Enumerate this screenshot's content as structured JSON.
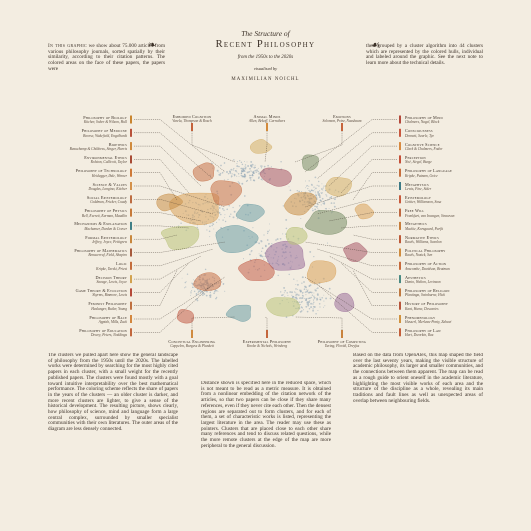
{
  "header": {
    "title_small": "The Structure of",
    "title_main": "Recent Philosophy",
    "subtitle": "from the 1950s to the 2020s",
    "byline": "visualised by",
    "author": "MAXIMILIAN NOICHL",
    "fleuron_left": "❧",
    "fleuron_right": "☙"
  },
  "columns": {
    "top_left_lead": "In this graphic",
    "top_left_text": "we show about 75.000 articles from various philosophy journals, sorted spatially by their similarity, according to their citation patterns. The colored areas on the face of these papers, the papers were",
    "top_right_text": "then grouped by a cluster algorithm into 44 clusters which are represented by the colored hulls, individual and labeled around the graphic. See the next note to learn more about the technical details.",
    "bottom_left_text": "The clusters we pulled apart here show the general landscape of philosophy from the 1950s until the 2020s. The labelled works were determined by searching for the most highly cited papers in each cluster, with a small weight for the recently published papers. The clusters were found mostly with a goal toward intuitive interpretability over the best mathematical performance. The coloring scheme reflects the share of papers in the years of the clusters — an older cluster is darker, and more recent clusters are lighter, to give a sense of the historical development. The resulting picture, shows clearly, how philosophy of science, mind and language form a large central complex, surrounded by smaller specialist communities with their own literatures. The outer areas of the diagram are less densely connected.",
    "bottom_center_text": "Distance shown is specified here in the reduced space, which is not meant to be read as a metric measure. It is obtained from a nonlinear embedding of the citation network of the articles, so that two papers can be close if they share many references, even if they never cite each other. Then the densest regions are separated out to form clusters, and for each of them, a set of characteristic works is listed, representing the largest literature in the area. The reader may use these as pointers. Clusters that are placed close to each other share many references and tend to discuss related questions, while the more remote clusters at the edge of the map are more peripheral to the general discussion.",
    "bottom_right_text": "Based on the data from OpenAlex, this map shaped the field over the last seventy years, making the visible structure of academic philosophy, its larger and smaller communities, and the connections between them apparent. The map can be read as a rough guide to orient oneself in the academic literature, highlighting the most visible works of each area and the structure of the discipline as a whole, revealing its main traditions and fault lines as well as unexpected areas of overlap between neighbouring fields."
  },
  "clusters_left": [
    {
      "name": "Philosophy of Biology",
      "works": "Kitcher, Sober & Wilson, Hull",
      "color": "#c9852f"
    },
    {
      "name": "Philosophy of Medicine",
      "works": "Boorse, Wakefield, Engelhardt",
      "color": "#b9523a"
    },
    {
      "name": "Bioethics",
      "works": "Beauchamp & Childress, Singer, Harris",
      "color": "#d08a3c"
    },
    {
      "name": "Environmental Ethics",
      "works": "Rolston, Callicott, Taylor",
      "color": "#a84b35"
    },
    {
      "name": "Philosophy of Technology",
      "works": "Heidegger, Ihde, Winner",
      "color": "#cf7a38"
    },
    {
      "name": "Science & Values",
      "works": "Douglas, Longino, Kitcher",
      "color": "#d4914a"
    },
    {
      "name": "Social Epistemology",
      "works": "Goldman, Fricker, Coady",
      "color": "#bd6d42"
    },
    {
      "name": "Philosophy of Physics",
      "works": "Bell, Everett, Earman, Maudlin",
      "color": "#c77a3a"
    },
    {
      "name": "Mechanisms & Explanation",
      "works": "Machamer, Darden & Craver",
      "color": "#3f7f86"
    },
    {
      "name": "Formal Epistemology",
      "works": "Jeffrey, Joyce, Pettigrew",
      "color": "#c8873d"
    },
    {
      "name": "Philosophy of Mathematics",
      "works": "Benacerraf, Field, Shapiro",
      "color": "#a75a3d"
    },
    {
      "name": "Logic",
      "works": "Kripke, Tarski, Priest",
      "color": "#c46d3c"
    },
    {
      "name": "Decision Theory",
      "works": "Savage, Lewis, Joyce",
      "color": "#d2a24f"
    },
    {
      "name": "Game Theory & Evolution",
      "works": "Skyrms, Binmore, Lewis",
      "color": "#b64a3a"
    },
    {
      "name": "Feminist Philosophy",
      "works": "Haslanger, Butler, Young",
      "color": "#c0703f"
    },
    {
      "name": "Philosophy of Race",
      "works": "Appiah, Mills, Zack",
      "color": "#d3873e"
    },
    {
      "name": "Philosophy of Education",
      "works": "Dewey, Peters, Noddings",
      "color": "#c2673d"
    }
  ],
  "clusters_right": [
    {
      "name": "Philosophy of Mind",
      "works": "Chalmers, Nagel, Block",
      "color": "#b44a3c"
    },
    {
      "name": "Consciousness",
      "works": "Dennett, Searle, Tye",
      "color": "#c9583f"
    },
    {
      "name": "Cognitive Science",
      "works": "Clark & Chalmers, Fodor",
      "color": "#d8893f"
    },
    {
      "name": "Perception",
      "works": "Noë, Siegel, Burge",
      "color": "#c55039"
    },
    {
      "name": "Philosophy of Language",
      "works": "Kripke, Putnam, Grice",
      "color": "#c76f3e"
    },
    {
      "name": "Metaphysics",
      "works": "Lewis, Fine, Sider",
      "color": "#3d7a86"
    },
    {
      "name": "Epistemology",
      "works": "Gettier, Williamson, Sosa",
      "color": "#c85a3c"
    },
    {
      "name": "Free Will",
      "works": "Frankfurt, van Inwagen, Strawson",
      "color": "#bf6840"
    },
    {
      "name": "Metaethics",
      "works": "Mackie, Korsgaard, Parfit",
      "color": "#c77d3b"
    },
    {
      "name": "Normative Ethics",
      "works": "Rawls, Williams, Scanlon",
      "color": "#bd5a39"
    },
    {
      "name": "Political Philosophy",
      "works": "Rawls, Nozick, Sen",
      "color": "#d08c3e"
    },
    {
      "name": "Philosophy of Action",
      "works": "Anscombe, Davidson, Bratman",
      "color": "#c76a3b"
    },
    {
      "name": "Aesthetics",
      "works": "Danto, Walton, Levinson",
      "color": "#4a8a83"
    },
    {
      "name": "Philosophy of Religion",
      "works": "Plantinga, Swinburne, Hick",
      "color": "#c07940"
    },
    {
      "name": "History of Philosophy",
      "works": "Kant, Hume, Descartes",
      "color": "#b8553b"
    },
    {
      "name": "Phenomenology",
      "works": "Husserl, Merleau-Ponty, Zahavi",
      "color": "#d1933f"
    },
    {
      "name": "Philosophy of Law",
      "works": "Hart, Dworkin, Raz",
      "color": "#c45f3a"
    }
  ],
  "clusters_top": [
    {
      "name": "Embodied Cognition",
      "works": "Varela, Thompson & Rosch",
      "color": "#c4623b"
    },
    {
      "name": "Animal Minds",
      "works": "Allen, Bekoff, Carruthers",
      "color": "#d38a3b"
    },
    {
      "name": "Emotions",
      "works": "Solomon, Prinz, Nussbaum",
      "color": "#c6653d"
    }
  ],
  "clusters_bottom": [
    {
      "name": "Conceptual Engineering",
      "works": "Cappelen, Burgess & Plunkett",
      "color": "#d08b3f"
    },
    {
      "name": "Experimental Philosophy",
      "works": "Knobe & Nichols, Weinberg",
      "color": "#c4663c"
    },
    {
      "name": "Philosophy of Computing",
      "works": "Turing, Floridi, Dreyfus",
      "color": "#c9833d"
    }
  ],
  "colors": {
    "background": "#f3ede1",
    "ink": "#3a2f26",
    "point_cloud": "#8fa5b6",
    "hulls": [
      "#d9a35b",
      "#c7724a",
      "#b9c27a",
      "#6e9ea5",
      "#a85a6a",
      "#c89048",
      "#7a8f6a",
      "#d4b06a",
      "#9a6f9a",
      "#c25f4a"
    ]
  }
}
